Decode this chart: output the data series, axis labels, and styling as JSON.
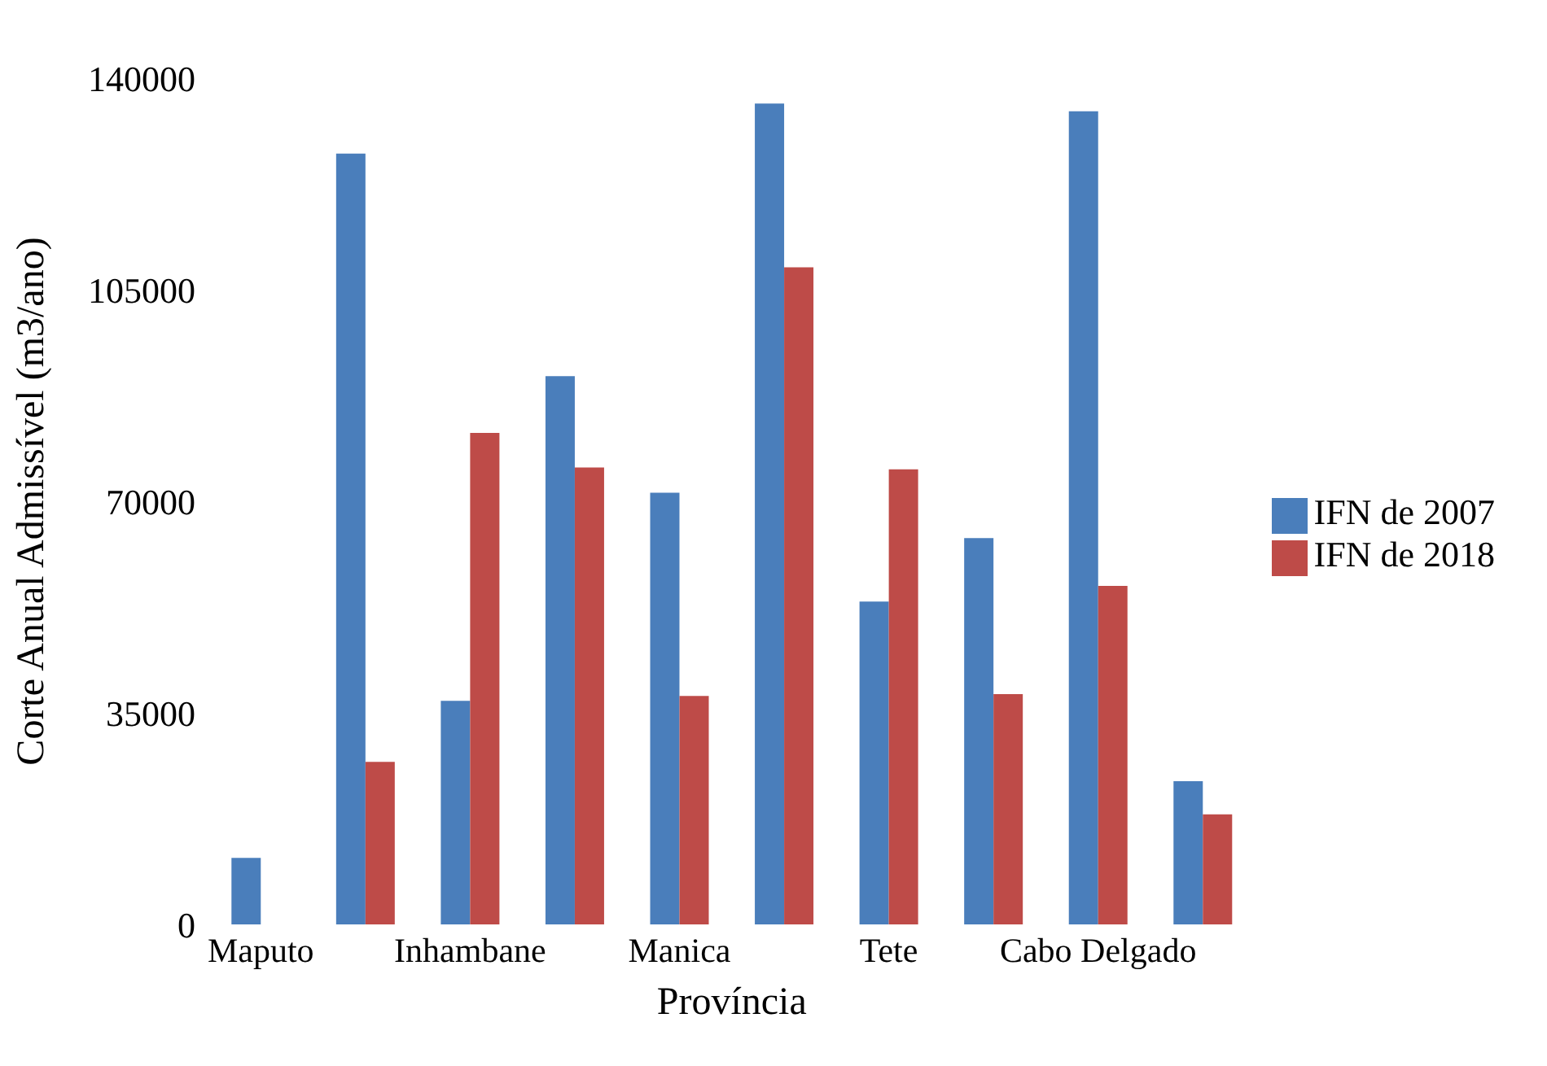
{
  "chart_data": {
    "type": "bar",
    "xlabel": "Província",
    "ylabel": "Corte Anual Admissível (m3/ano)",
    "categories": [
      "Maputo",
      null,
      "Inhambane",
      null,
      "Manica",
      null,
      "Tete",
      null,
      "Cabo Delgado",
      null
    ],
    "series": [
      {
        "name": "IFN de 2007",
        "color": "#4a7ebb",
        "values": [
          11000,
          127500,
          37000,
          90700,
          71400,
          135800,
          53400,
          63900,
          134500,
          23700
        ]
      },
      {
        "name": "IFN de 2018",
        "color": "#be4b48",
        "values": [
          null,
          26900,
          81300,
          75600,
          37800,
          108700,
          75300,
          38100,
          56000,
          18200
        ]
      }
    ],
    "ylim": [
      0,
      140000
    ],
    "yticks": [
      0,
      35000,
      70000,
      105000,
      140000
    ],
    "grid": false,
    "legend": "right"
  }
}
